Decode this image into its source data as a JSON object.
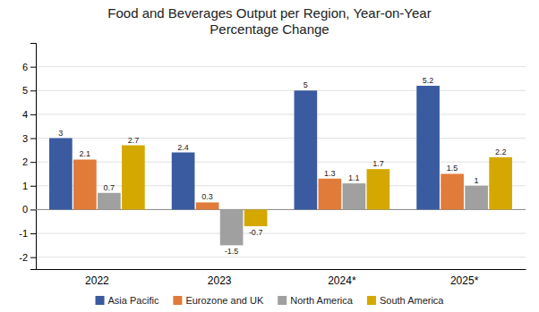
{
  "chart_data": {
    "type": "bar",
    "title": "Food and Beverages Output per Region, Year-on-Year\nPercentage Change",
    "categories": [
      "2022",
      "2023",
      "2024*",
      "2025*"
    ],
    "series": [
      {
        "name": "Asia Pacific",
        "color": "#3A5BA0",
        "values": [
          3.0,
          2.4,
          5.0,
          5.2
        ]
      },
      {
        "name": "Eurozone and UK",
        "color": "#E07B39",
        "values": [
          2.1,
          0.3,
          1.3,
          1.5
        ]
      },
      {
        "name": "North America",
        "color": "#A0A0A0",
        "values": [
          0.7,
          -1.5,
          1.1,
          1.0
        ]
      },
      {
        "name": "South America",
        "color": "#D4A800",
        "values": [
          2.7,
          -0.7,
          1.7,
          2.2
        ]
      }
    ],
    "ylim": [
      -2.5,
      7.0
    ],
    "yticks": [
      -2,
      -1,
      0,
      1,
      2,
      3,
      4,
      5,
      6
    ],
    "grid": true,
    "legend": "bottom",
    "data_labels": true
  }
}
